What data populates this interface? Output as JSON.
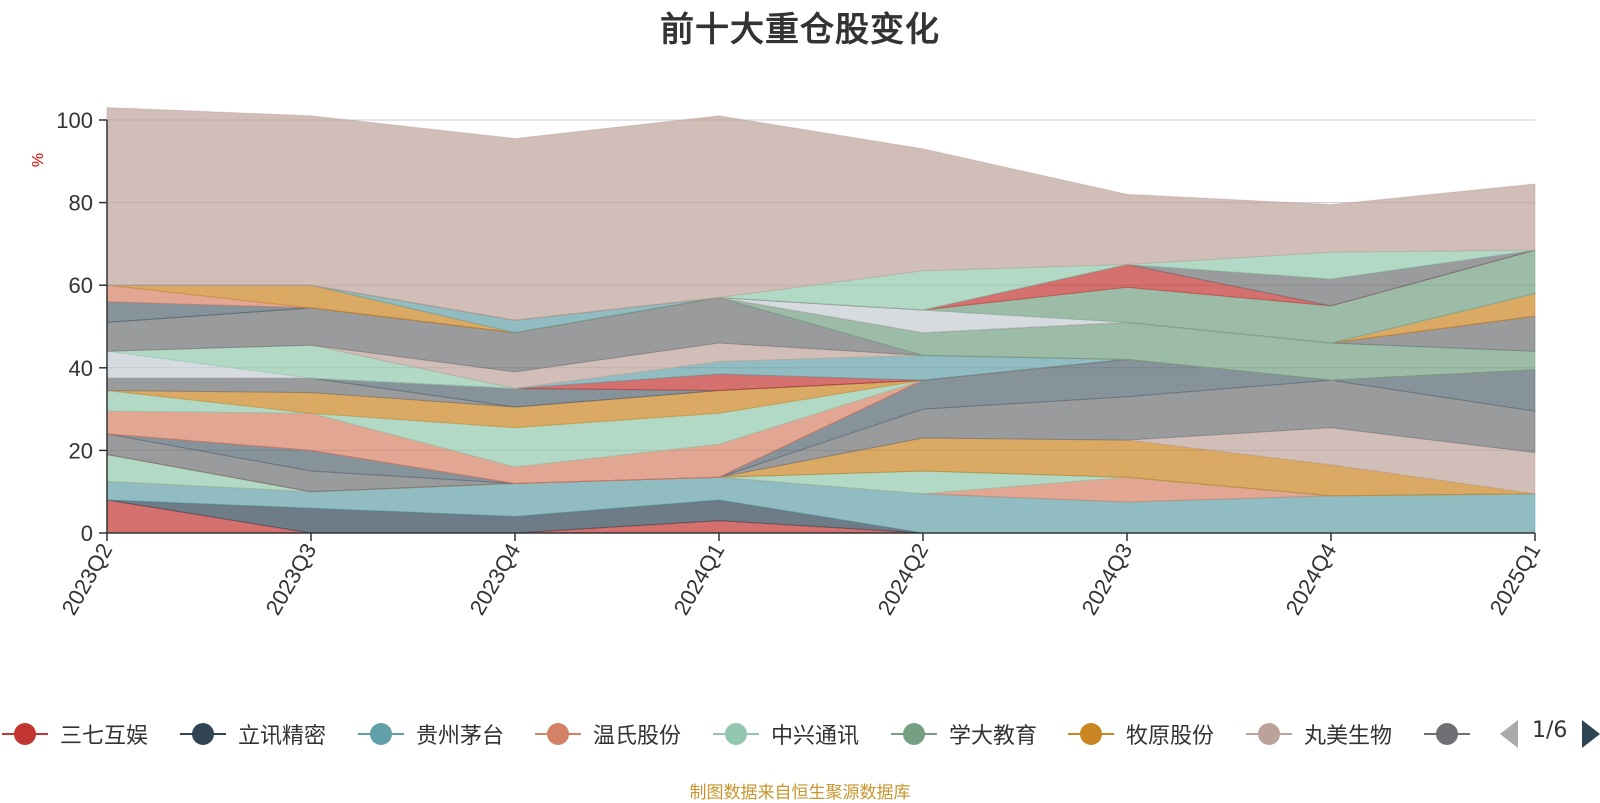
{
  "chart_data": {
    "type": "area",
    "stacked": true,
    "title": "前十大重仓股变化",
    "ylabel": "%",
    "ylim": [
      0,
      100
    ],
    "yticks": [
      0,
      20,
      40,
      60,
      80,
      100
    ],
    "grid": true,
    "categories": [
      "2023Q2",
      "2023Q3",
      "2023Q4",
      "2024Q1",
      "2024Q2",
      "2024Q3",
      "2024Q4",
      "2025Q1"
    ],
    "series": [
      {
        "name": "三七互娱",
        "color": "#c23531",
        "values": [
          8,
          0,
          0,
          3,
          0,
          0,
          0,
          0
        ]
      },
      {
        "name": "立讯精密",
        "color": "#2f4554",
        "values": [
          0,
          6,
          4,
          5,
          0,
          0,
          0,
          0
        ]
      },
      {
        "name": "贵州茅台",
        "color": "#61a0a8",
        "values": [
          4.5,
          4,
          8,
          5.5,
          9.5,
          7.5,
          9,
          9.5
        ]
      },
      {
        "name": "温氏股份",
        "color": "#d48265",
        "values": [
          0,
          0,
          0,
          0,
          0,
          6,
          0,
          0
        ]
      },
      {
        "name": "中兴通讯",
        "color": "#91c7ae",
        "values": [
          6.5,
          0,
          0,
          0,
          5.5,
          0,
          0,
          0
        ]
      },
      {
        "name": "学大教育",
        "color": "#749f83",
        "values": [
          0,
          0,
          0,
          0,
          0,
          0,
          0,
          0
        ]
      },
      {
        "name": "牧原股份",
        "color": "#ca8622",
        "values": [
          0,
          0,
          0,
          0,
          8,
          9,
          7.5,
          0
        ]
      },
      {
        "name": "丸美生物",
        "color": "#bda29a",
        "values": [
          0,
          0,
          0,
          0,
          0,
          0,
          9,
          10
        ]
      },
      {
        "name": "",
        "color": "#6e7074",
        "values": [
          5,
          5,
          0,
          0,
          7,
          10.5,
          11.5,
          10
        ]
      },
      {
        "name": "",
        "color": "#546570",
        "values": [
          0,
          5,
          0,
          0,
          7,
          9,
          0,
          10
        ]
      },
      {
        "name": "",
        "color": "#c4ccd3",
        "values": [
          0,
          0,
          0,
          0,
          0,
          0,
          0,
          0
        ]
      },
      {
        "name": "",
        "color": "#c23531",
        "values": [
          0,
          0,
          0,
          0,
          0,
          0,
          0,
          0
        ]
      },
      {
        "name": "",
        "color": "#d48265",
        "values": [
          5.5,
          9,
          4,
          8,
          0,
          0,
          0,
          0
        ]
      },
      {
        "name": "",
        "color": "#91c7ae",
        "values": [
          5,
          0,
          9.5,
          7.5,
          0,
          0,
          0,
          0
        ]
      },
      {
        "name": "",
        "color": "#ca8622",
        "values": [
          0,
          5,
          5,
          5.5,
          0,
          0,
          0,
          0
        ]
      },
      {
        "name": "",
        "color": "#6e7074",
        "values": [
          3,
          3.5,
          0,
          0,
          0,
          0,
          0,
          0
        ]
      },
      {
        "name": "",
        "color": "#546570",
        "values": [
          0,
          0,
          4.5,
          0,
          0,
          0,
          0,
          0
        ]
      },
      {
        "name": "",
        "color": "#c23531",
        "values": [
          0,
          0,
          0,
          4,
          0,
          0,
          0,
          0
        ]
      },
      {
        "name": "",
        "color": "#61a0a8",
        "values": [
          0,
          0,
          0,
          3,
          6,
          0,
          0,
          0
        ]
      },
      {
        "name": "",
        "color": "#c4ccd3",
        "values": [
          6.5,
          0,
          0,
          0,
          0,
          0,
          0,
          0
        ]
      },
      {
        "name": "",
        "color": "#91c7ae",
        "values": [
          0,
          8,
          0,
          0,
          0,
          0,
          0,
          0
        ]
      },
      {
        "name": "",
        "color": "#bda29a",
        "values": [
          0,
          0,
          4,
          4.5,
          0,
          0,
          0,
          0
        ]
      },
      {
        "name": "",
        "color": "#6e7074",
        "values": [
          7,
          9,
          9.5,
          11,
          0,
          0,
          0,
          0
        ]
      },
      {
        "name": "",
        "color": "#749f83",
        "values": [
          0,
          0,
          0,
          0,
          5.5,
          9,
          9,
          4.5
        ]
      },
      {
        "name": "",
        "color": "#6e7074",
        "values": [
          0,
          0,
          0,
          0,
          0,
          0,
          0,
          8.5
        ]
      },
      {
        "name": "",
        "color": "#546570",
        "values": [
          5,
          0,
          0,
          0,
          0,
          0,
          0,
          0
        ]
      },
      {
        "name": "",
        "color": "#d48265",
        "values": [
          4,
          0,
          0,
          0,
          0,
          0,
          0,
          0
        ]
      },
      {
        "name": "",
        "color": "#ca8622",
        "values": [
          0,
          5.5,
          0,
          0,
          0,
          0,
          0,
          5.5
        ]
      },
      {
        "name": "",
        "color": "#61a0a8",
        "values": [
          0,
          0,
          3,
          0,
          0,
          0,
          0,
          0
        ]
      },
      {
        "name": "",
        "color": "#c4ccd3",
        "values": [
          0,
          0,
          0,
          0,
          5.5,
          0,
          0,
          0
        ]
      },
      {
        "name": "",
        "color": "#749f83",
        "values": [
          0,
          0,
          0,
          0,
          0,
          8.5,
          9,
          10.5
        ]
      },
      {
        "name": "",
        "color": "#c23531",
        "values": [
          0,
          0,
          0,
          0,
          0,
          5.5,
          0,
          0
        ]
      },
      {
        "name": "",
        "color": "#6e7074",
        "values": [
          0,
          0,
          0,
          0,
          0,
          0,
          6.5,
          0
        ]
      },
      {
        "name": "",
        "color": "#91c7ae",
        "values": [
          0,
          0,
          0,
          0,
          9.5,
          0,
          6.5,
          0
        ]
      },
      {
        "name": "",
        "color": "#bda29a",
        "values": [
          43,
          41,
          44,
          44,
          29.5,
          17,
          11.5,
          16
        ]
      }
    ],
    "legend": {
      "position": "bottom",
      "page": "1/6"
    }
  },
  "legend_items": [
    {
      "name": "三七互娱",
      "color": "#c23531"
    },
    {
      "name": "立讯精密",
      "color": "#2f4554"
    },
    {
      "name": "贵州茅台",
      "color": "#61a0a8"
    },
    {
      "name": "温氏股份",
      "color": "#d48265"
    },
    {
      "name": "中兴通讯",
      "color": "#91c7ae"
    },
    {
      "name": "学大教育",
      "color": "#749f83"
    },
    {
      "name": "牧原股份",
      "color": "#ca8622"
    },
    {
      "name": "丸美生物",
      "color": "#bda29a"
    },
    {
      "name": "",
      "color": "#6e7074"
    }
  ],
  "pager": {
    "text": "1/6"
  },
  "source": "制图数据来自恒生聚源数据库"
}
